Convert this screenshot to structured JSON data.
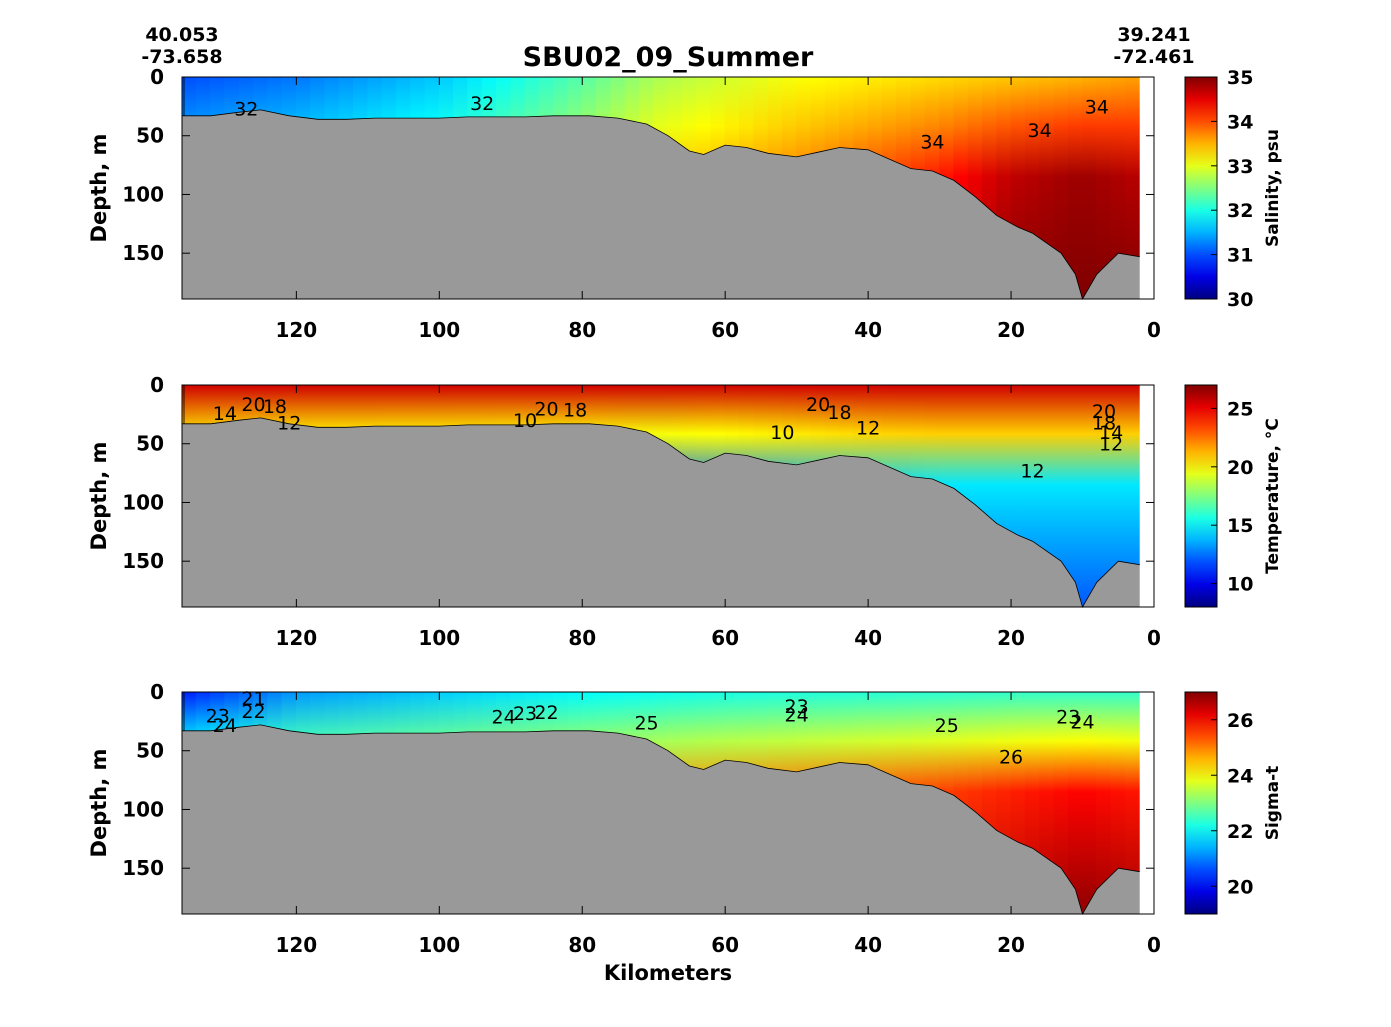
{
  "figure": {
    "title": "SBU02_09_Summer",
    "left_station": {
      "lat": "40.053",
      "lon": "-73.658"
    },
    "right_station": {
      "lat": "39.241",
      "lon": "-72.461"
    },
    "xlabel": "Kilometers"
  },
  "chart_data": [
    {
      "type": "heatmap",
      "name": "salinity-section",
      "ylabel": "Depth, m",
      "colorbar_label": "Salinity, psu",
      "xlim": [
        136,
        2
      ],
      "x_reversed": true,
      "ylim": [
        0,
        189
      ],
      "y_reversed": true,
      "x_ticks": [
        120,
        100,
        80,
        60,
        40,
        20,
        0
      ],
      "y_ticks": [
        0,
        50,
        100,
        150
      ],
      "clim": [
        30,
        35
      ],
      "colorbar_ticks": [
        30,
        31,
        32,
        33,
        34,
        35
      ],
      "colormap": "jet",
      "bathymetry_color": "#999999",
      "bathymetry": [
        [
          136,
          33
        ],
        [
          132,
          33
        ],
        [
          128,
          30
        ],
        [
          125,
          28
        ],
        [
          121,
          33
        ],
        [
          117,
          36
        ],
        [
          113,
          36
        ],
        [
          109,
          35
        ],
        [
          105,
          35
        ],
        [
          100,
          35
        ],
        [
          96,
          34
        ],
        [
          92,
          34
        ],
        [
          88,
          34
        ],
        [
          84,
          33
        ],
        [
          79,
          33
        ],
        [
          75,
          35
        ],
        [
          71,
          40
        ],
        [
          68,
          50
        ],
        [
          65,
          63
        ],
        [
          63,
          66
        ],
        [
          60,
          58
        ],
        [
          57,
          60
        ],
        [
          54,
          65
        ],
        [
          50,
          68
        ],
        [
          47,
          64
        ],
        [
          44,
          60
        ],
        [
          40,
          62
        ],
        [
          37,
          70
        ],
        [
          34,
          78
        ],
        [
          31,
          80
        ],
        [
          28,
          88
        ],
        [
          25,
          102
        ],
        [
          22,
          118
        ],
        [
          19,
          128
        ],
        [
          17,
          133
        ],
        [
          13,
          150
        ],
        [
          11,
          168
        ],
        [
          10,
          190
        ],
        [
          8,
          168
        ],
        [
          5,
          150
        ],
        [
          2,
          153
        ]
      ],
      "surface": [
        [
          136,
          31.0
        ],
        [
          120,
          31.2
        ],
        [
          100,
          31.6
        ],
        [
          80,
          32.3
        ],
        [
          70,
          32.7
        ],
        [
          60,
          32.9
        ],
        [
          50,
          33.1
        ],
        [
          40,
          33.2
        ],
        [
          30,
          33.3
        ],
        [
          20,
          33.4
        ],
        [
          10,
          33.5
        ],
        [
          2,
          33.6
        ]
      ],
      "deep": [
        [
          136,
          32.0
        ],
        [
          120,
          32.2
        ],
        [
          100,
          32.5
        ],
        [
          80,
          33.1
        ],
        [
          70,
          33.5
        ],
        [
          60,
          33.7
        ],
        [
          50,
          33.9
        ],
        [
          40,
          34.2
        ],
        [
          30,
          34.5
        ],
        [
          20,
          35.0
        ],
        [
          10,
          35.2
        ],
        [
          2,
          35.0
        ]
      ],
      "contour_labels": [
        {
          "text": "32",
          "x": 127,
          "y": 27
        },
        {
          "text": "32",
          "x": 94,
          "y": 22
        },
        {
          "text": "34",
          "x": 31,
          "y": 55
        },
        {
          "text": "34",
          "x": 8,
          "y": 25
        },
        {
          "text": "34",
          "x": 16,
          "y": 45
        }
      ]
    },
    {
      "type": "heatmap",
      "name": "temperature-section",
      "ylabel": "Depth, m",
      "colorbar_label": "Temperature, °C",
      "xlim": [
        136,
        2
      ],
      "x_reversed": true,
      "ylim": [
        0,
        189
      ],
      "y_reversed": true,
      "x_ticks": [
        120,
        100,
        80,
        60,
        40,
        20,
        0
      ],
      "y_ticks": [
        0,
        50,
        100,
        150
      ],
      "clim": [
        8,
        27
      ],
      "colorbar_ticks": [
        10,
        15,
        20,
        25
      ],
      "colormap": "jet",
      "bathymetry_color": "#999999",
      "bathymetry": [
        [
          136,
          33
        ],
        [
          132,
          33
        ],
        [
          128,
          30
        ],
        [
          125,
          28
        ],
        [
          121,
          33
        ],
        [
          117,
          36
        ],
        [
          113,
          36
        ],
        [
          109,
          35
        ],
        [
          105,
          35
        ],
        [
          100,
          35
        ],
        [
          96,
          34
        ],
        [
          92,
          34
        ],
        [
          88,
          34
        ],
        [
          84,
          33
        ],
        [
          79,
          33
        ],
        [
          75,
          35
        ],
        [
          71,
          40
        ],
        [
          68,
          50
        ],
        [
          65,
          63
        ],
        [
          63,
          66
        ],
        [
          60,
          58
        ],
        [
          57,
          60
        ],
        [
          54,
          65
        ],
        [
          50,
          68
        ],
        [
          47,
          64
        ],
        [
          44,
          60
        ],
        [
          40,
          62
        ],
        [
          37,
          70
        ],
        [
          34,
          78
        ],
        [
          31,
          80
        ],
        [
          28,
          88
        ],
        [
          25,
          102
        ],
        [
          22,
          118
        ],
        [
          19,
          128
        ],
        [
          17,
          133
        ],
        [
          13,
          150
        ],
        [
          11,
          168
        ],
        [
          10,
          190
        ],
        [
          8,
          168
        ],
        [
          5,
          150
        ],
        [
          2,
          153
        ]
      ],
      "surface": [
        [
          136,
          25.5
        ],
        [
          120,
          25.5
        ],
        [
          100,
          25.5
        ],
        [
          80,
          25.5
        ],
        [
          60,
          25.5
        ],
        [
          40,
          25.5
        ],
        [
          20,
          25.5
        ],
        [
          2,
          25.5
        ]
      ],
      "deep": [
        [
          136,
          10.5
        ],
        [
          120,
          10.0
        ],
        [
          100,
          9.8
        ],
        [
          80,
          9.5
        ],
        [
          70,
          9.0
        ],
        [
          60,
          9.5
        ],
        [
          50,
          10.5
        ],
        [
          40,
          11.5
        ],
        [
          30,
          12.0
        ],
        [
          20,
          12.0
        ],
        [
          10,
          12.0
        ],
        [
          2,
          12.0
        ]
      ],
      "contour_labels": [
        {
          "text": "20",
          "x": 126,
          "y": 16
        },
        {
          "text": "18",
          "x": 123,
          "y": 18
        },
        {
          "text": "14",
          "x": 130,
          "y": 24
        },
        {
          "text": "12",
          "x": 121,
          "y": 32
        },
        {
          "text": "10",
          "x": 88,
          "y": 30
        },
        {
          "text": "20",
          "x": 85,
          "y": 20
        },
        {
          "text": "18",
          "x": 81,
          "y": 21
        },
        {
          "text": "10",
          "x": 52,
          "y": 40
        },
        {
          "text": "20",
          "x": 47,
          "y": 16
        },
        {
          "text": "18",
          "x": 44,
          "y": 23
        },
        {
          "text": "12",
          "x": 40,
          "y": 36
        },
        {
          "text": "20",
          "x": 7,
          "y": 22
        },
        {
          "text": "18",
          "x": 7,
          "y": 32
        },
        {
          "text": "14",
          "x": 6,
          "y": 40
        },
        {
          "text": "12",
          "x": 6,
          "y": 50
        },
        {
          "text": "12",
          "x": 17,
          "y": 73
        }
      ]
    },
    {
      "type": "heatmap",
      "name": "sigma-t-section",
      "ylabel": "Depth, m",
      "colorbar_label": "Sigma-t",
      "xlabel": "Kilometers",
      "xlim": [
        136,
        2
      ],
      "x_reversed": true,
      "ylim": [
        0,
        189
      ],
      "y_reversed": true,
      "x_ticks": [
        120,
        100,
        80,
        60,
        40,
        20,
        0
      ],
      "y_ticks": [
        0,
        50,
        100,
        150
      ],
      "clim": [
        19,
        27
      ],
      "colorbar_ticks": [
        20,
        22,
        24,
        26
      ],
      "colormap": "jet",
      "bathymetry_color": "#999999",
      "bathymetry": [
        [
          136,
          33
        ],
        [
          132,
          33
        ],
        [
          128,
          30
        ],
        [
          125,
          28
        ],
        [
          121,
          33
        ],
        [
          117,
          36
        ],
        [
          113,
          36
        ],
        [
          109,
          35
        ],
        [
          105,
          35
        ],
        [
          100,
          35
        ],
        [
          96,
          34
        ],
        [
          92,
          34
        ],
        [
          88,
          34
        ],
        [
          84,
          33
        ],
        [
          79,
          33
        ],
        [
          75,
          35
        ],
        [
          71,
          40
        ],
        [
          68,
          50
        ],
        [
          65,
          63
        ],
        [
          63,
          66
        ],
        [
          60,
          58
        ],
        [
          57,
          60
        ],
        [
          54,
          65
        ],
        [
          50,
          68
        ],
        [
          47,
          64
        ],
        [
          44,
          60
        ],
        [
          40,
          62
        ],
        [
          37,
          70
        ],
        [
          34,
          78
        ],
        [
          31,
          80
        ],
        [
          28,
          88
        ],
        [
          25,
          102
        ],
        [
          22,
          118
        ],
        [
          19,
          128
        ],
        [
          17,
          133
        ],
        [
          13,
          150
        ],
        [
          11,
          168
        ],
        [
          10,
          190
        ],
        [
          8,
          168
        ],
        [
          5,
          150
        ],
        [
          2,
          153
        ]
      ],
      "surface": [
        [
          136,
          20.2
        ],
        [
          120,
          21.2
        ],
        [
          100,
          21.6
        ],
        [
          80,
          22.0
        ],
        [
          60,
          22.2
        ],
        [
          40,
          22.3
        ],
        [
          20,
          22.4
        ],
        [
          2,
          22.4
        ]
      ],
      "deep": [
        [
          136,
          24.8
        ],
        [
          120,
          25.0
        ],
        [
          100,
          25.1
        ],
        [
          80,
          25.3
        ],
        [
          70,
          25.5
        ],
        [
          60,
          25.7
        ],
        [
          50,
          25.9
        ],
        [
          40,
          26.1
        ],
        [
          30,
          26.3
        ],
        [
          20,
          26.6
        ],
        [
          10,
          26.9
        ],
        [
          2,
          26.7
        ]
      ],
      "contour_labels": [
        {
          "text": "21",
          "x": 126,
          "y": 5
        },
        {
          "text": "22",
          "x": 126,
          "y": 16
        },
        {
          "text": "23",
          "x": 131,
          "y": 20
        },
        {
          "text": "24",
          "x": 130,
          "y": 28
        },
        {
          "text": "24",
          "x": 91,
          "y": 21
        },
        {
          "text": "23",
          "x": 88,
          "y": 18
        },
        {
          "text": "22",
          "x": 85,
          "y": 17
        },
        {
          "text": "25",
          "x": 71,
          "y": 26
        },
        {
          "text": "23",
          "x": 50,
          "y": 12
        },
        {
          "text": "24",
          "x": 50,
          "y": 19
        },
        {
          "text": "25",
          "x": 29,
          "y": 28
        },
        {
          "text": "26",
          "x": 20,
          "y": 55
        },
        {
          "text": "23",
          "x": 12,
          "y": 21
        },
        {
          "text": "24",
          "x": 10,
          "y": 25
        }
      ]
    }
  ]
}
